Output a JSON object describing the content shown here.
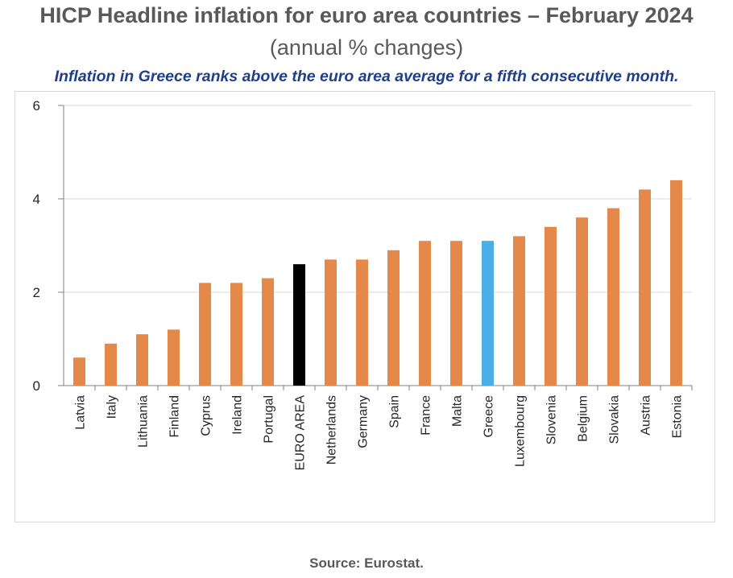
{
  "header": {
    "title": "HICP Headline inflation for euro area countries – February 2024",
    "subtitle": "(annual % changes)",
    "headline": "Inflation in Greece ranks above the euro area average for a fifth consecutive month."
  },
  "footer": {
    "source": "Source: Eurostat."
  },
  "colors": {
    "default_bar": "#e4894a",
    "euro_area_bar": "#000000",
    "greece_bar": "#4baee6",
    "gridline": "#d9d9d9",
    "axis": "#808080",
    "text": "#262626"
  },
  "chart_data": {
    "type": "bar",
    "title": "HICP Headline inflation for euro area countries – February 2024",
    "subtitle": "(annual % changes)",
    "xlabel": "",
    "ylabel": "",
    "ylim": [
      0,
      6
    ],
    "yticks": [
      0,
      2,
      4,
      6
    ],
    "grid": true,
    "legend": "none",
    "categories": [
      "Latvia",
      "Italy",
      "Lithuania",
      "Finland",
      "Cyprus",
      "Ireland",
      "Portugal",
      "EURO AREA",
      "Netherlands",
      "Germany",
      "Spain",
      "France",
      "Malta",
      "Greece",
      "Luxembourg",
      "Slovenia",
      "Belgium",
      "Slovakia",
      "Austria",
      "Estonia"
    ],
    "values": [
      0.6,
      0.9,
      1.1,
      1.2,
      2.2,
      2.2,
      2.3,
      2.6,
      2.7,
      2.7,
      2.9,
      3.1,
      3.1,
      3.1,
      3.2,
      3.4,
      3.6,
      3.8,
      4.2,
      4.4
    ],
    "highlights": {
      "EURO AREA": "#000000",
      "Greece": "#4baee6"
    }
  }
}
